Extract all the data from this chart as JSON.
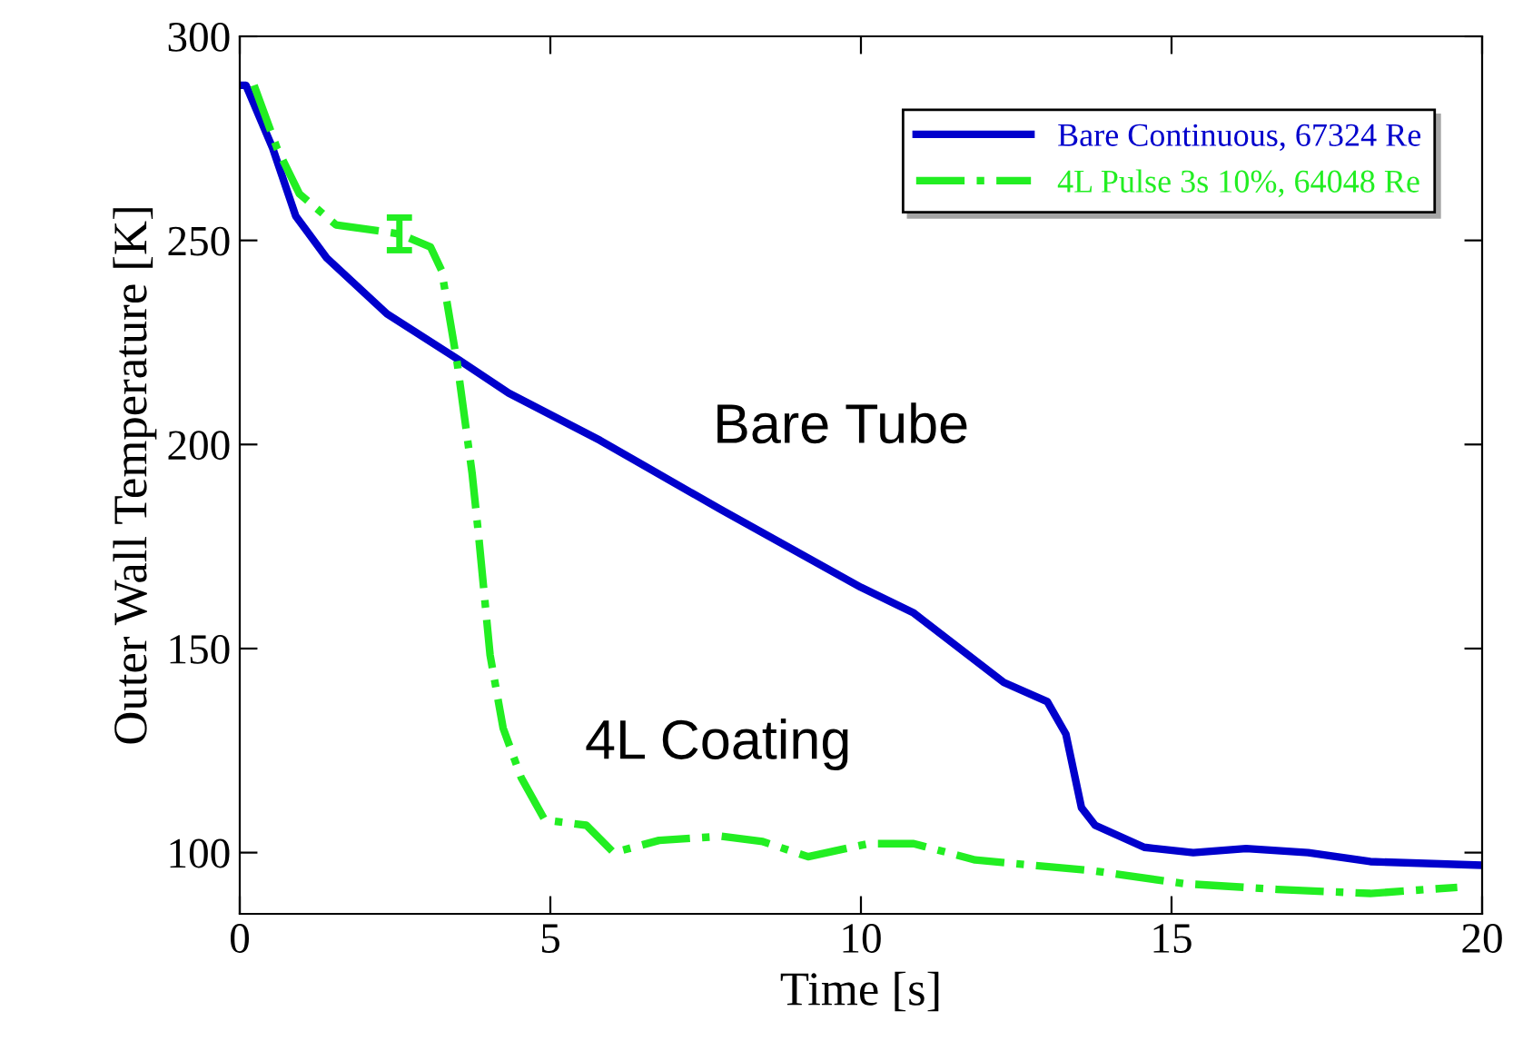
{
  "chart_data": {
    "type": "line",
    "xlabel": "Time [s]",
    "ylabel": "Outer Wall Temperature [K]",
    "xlim": [
      0,
      20
    ],
    "xticks": [
      0,
      5,
      10,
      15,
      20
    ],
    "ylim": [
      85,
      300
    ],
    "yticks": [
      100,
      150,
      200,
      250,
      300
    ],
    "grid": false,
    "legend": "top right",
    "series": [
      {
        "name": "Bare Continuous, 67324 Re",
        "color": "#0000cc",
        "line_style": "solid",
        "x": [
          0,
          0.1,
          0.53,
          0.9,
          1.4,
          2.37,
          3.45,
          4.33,
          5.8,
          7.75,
          10,
          10.85,
          12.3,
          13,
          13.3,
          13.55,
          13.77,
          14.56,
          15.35,
          16.2,
          17.2,
          18.2,
          20
        ],
        "values": [
          288,
          288,
          272.6,
          256,
          245.7,
          232,
          221.5,
          212.6,
          201,
          184,
          165,
          158.7,
          141.7,
          137,
          129,
          111,
          106.7,
          101.3,
          100,
          101,
          100,
          97.8,
          96.9
        ]
      },
      {
        "name": "4L Pulse 3s 10%, 64048 Re",
        "color": "#22ee22",
        "line_style": "dashdot",
        "x": [
          0.23,
          0.6,
          0.96,
          1.55,
          2.57,
          3.07,
          3.25,
          3.5,
          3.74,
          3.84,
          4.03,
          4.24,
          4.53,
          4.91,
          5.58,
          6.02,
          6.75,
          7.75,
          8.42,
          9.15,
          10.12,
          10.85,
          11.84,
          13.77,
          15.2,
          16.7,
          18.2,
          19.6
        ],
        "values": [
          288,
          272.6,
          261.4,
          253.8,
          251.6,
          248.4,
          242.6,
          220,
          193,
          178.5,
          148.4,
          130.5,
          118.4,
          108,
          106.7,
          100,
          103,
          104,
          102.7,
          99,
          102.2,
          102.2,
          98.2,
          95.5,
          92.4,
          91,
          90,
          91.5
        ],
        "errors": [
          null,
          null,
          null,
          null,
          4,
          null,
          null,
          null,
          null,
          null,
          null,
          null,
          null,
          null,
          null,
          null,
          null,
          null,
          null,
          null,
          null,
          null,
          null,
          null,
          null,
          null,
          null,
          null
        ]
      }
    ],
    "annotations": [
      "Bare Tube",
      "4L Coating"
    ]
  }
}
